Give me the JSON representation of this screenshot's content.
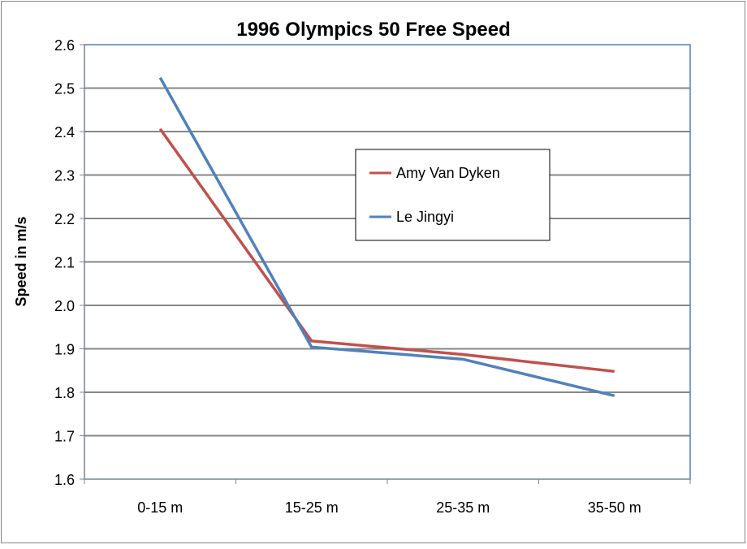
{
  "chart_data": {
    "type": "line",
    "title": "1996 Olympics 50 Free Speed",
    "xlabel": "",
    "ylabel": "Speed in m/s",
    "categories": [
      "0-15 m",
      "15-25 m",
      "25-35 m",
      "35-50 m"
    ],
    "ylim": [
      1.6,
      2.6
    ],
    "yticks": [
      "1.6",
      "1.7",
      "1.8",
      "1.9",
      "2.0",
      "2.1",
      "2.2",
      "2.3",
      "2.4",
      "2.5",
      "2.6"
    ],
    "grid": true,
    "legend_position": "center-right",
    "series": [
      {
        "name": "Amy Van Dyken",
        "color": "#C0504D",
        "values": [
          2.406,
          1.918,
          1.887,
          1.848
        ]
      },
      {
        "name": "Le Jingyi",
        "color": "#4F81BD",
        "values": [
          2.524,
          1.904,
          1.876,
          1.792
        ]
      }
    ]
  }
}
